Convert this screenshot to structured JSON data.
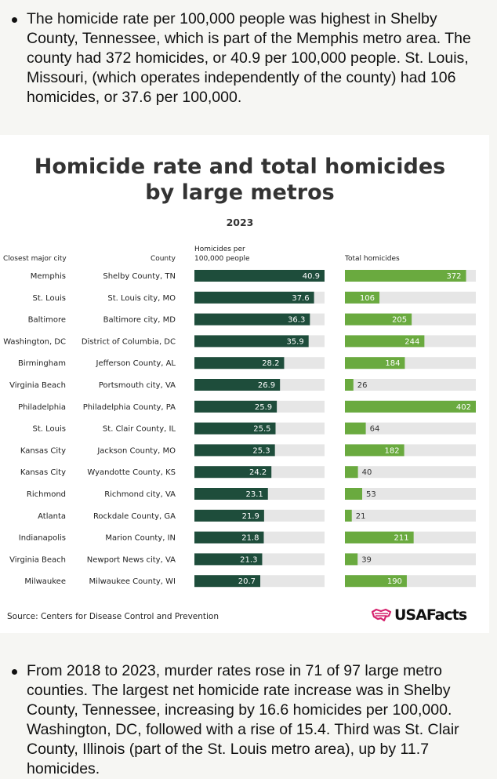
{
  "intro_paragraph": "The homicide rate per 100,000 people was highest in Shelby County, Tennessee, which is part of the Memphis metro area. The county had 372 homicides, or 40.9 per 100,000 people. St. Louis, Missouri, (which operates independently of the county) had 106 homicides, or 37.6 per 100,000.",
  "outro_paragraph": "From 2018 to 2023, murder rates rose in 71 of 97 large metro counties. The largest net homicide rate increase was in Shelby County, Tennessee, increasing by 16.6 homicides per 100,000. Washington, DC, followed with a rise of 15.4. Third was St. Clair County, Illinois (part of the St. Louis metro area), up by 11.7 homicides.",
  "source": "Source: Centers for Disease Control and Prevention",
  "logo_text": "USAFacts",
  "colors": {
    "rate_bar": "#1e4d3b",
    "total_bar": "#6aaa3f",
    "track": "#e6e6e6",
    "logo_accent": "#d6246e"
  },
  "chart_data": {
    "type": "table",
    "title_line1": "Homicide rate and total homicides",
    "title_line2": "by large metros",
    "subtitle": "2023",
    "columns": {
      "city": "Closest major city",
      "county": "County",
      "rate_line1": "Homicides per",
      "rate_line2": "100,000 people",
      "total": "Total homicides"
    },
    "rate_max": 40.9,
    "total_max": 402,
    "rows": [
      {
        "city": "Memphis",
        "county": "Shelby County, TN",
        "rate": 40.9,
        "total": 372
      },
      {
        "city": "St. Louis",
        "county": "St. Louis city, MO",
        "rate": 37.6,
        "total": 106
      },
      {
        "city": "Baltimore",
        "county": "Baltimore city, MD",
        "rate": 36.3,
        "total": 205
      },
      {
        "city": "Washington, DC",
        "county": "District of Columbia, DC",
        "rate": 35.9,
        "total": 244
      },
      {
        "city": "Birmingham",
        "county": "Jefferson County, AL",
        "rate": 28.2,
        "total": 184
      },
      {
        "city": "Virginia Beach",
        "county": "Portsmouth city,  VA",
        "rate": 26.9,
        "total": 26
      },
      {
        "city": "Philadelphia",
        "county": "Philadelphia County, PA",
        "rate": 25.9,
        "total": 402
      },
      {
        "city": "St. Louis",
        "county": "St. Clair County, IL",
        "rate": 25.5,
        "total": 64
      },
      {
        "city": "Kansas City",
        "county": "Jackson County, MO",
        "rate": 25.3,
        "total": 182
      },
      {
        "city": "Kansas City",
        "county": "Wyandotte County, KS",
        "rate": 24.2,
        "total": 40
      },
      {
        "city": "Richmond",
        "county": "Richmond city, VA",
        "rate": 23.1,
        "total": 53
      },
      {
        "city": "Atlanta",
        "county": "Rockdale County, GA",
        "rate": 21.9,
        "total": 21
      },
      {
        "city": "Indianapolis",
        "county": "Marion County, IN",
        "rate": 21.8,
        "total": 211
      },
      {
        "city": "Virginia Beach",
        "county": "Newport News city, VA",
        "rate": 21.3,
        "total": 39
      },
      {
        "city": "Milwaukee",
        "county": "Milwaukee County, WI",
        "rate": 20.7,
        "total": 190
      }
    ]
  }
}
